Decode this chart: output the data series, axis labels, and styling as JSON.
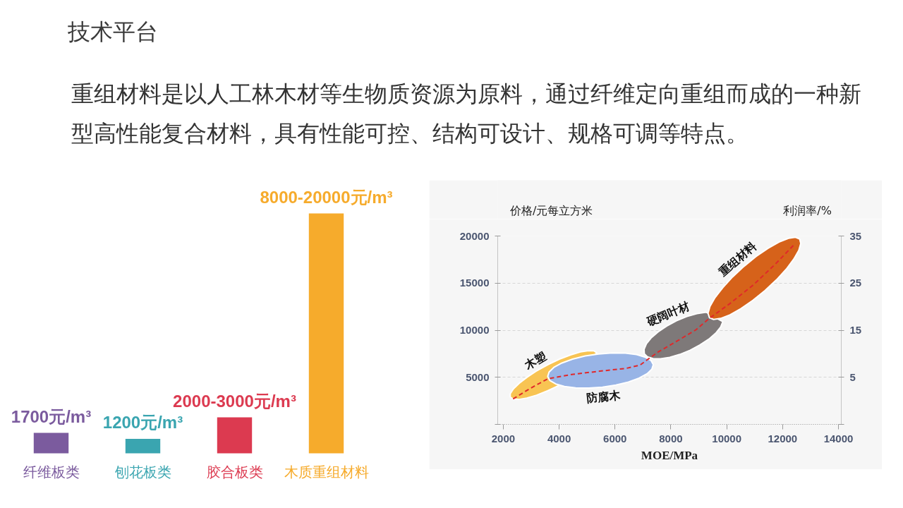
{
  "chart_data": [
    {
      "type": "bar",
      "title": "技术平台",
      "subtitle": "重组材料是以人工林木材等生物质资源为原料，通过纤维定向重组而成的一种新型高性能复合材料，具有性能可控、结构可设计、规格可调等特点。",
      "categories": [
        "纤维板类",
        "刨花板类",
        "胶合板类",
        "木质重组材料"
      ],
      "values": [
        1700,
        1200,
        3000,
        20000
      ],
      "colors": [
        "#7b5b9e",
        "#3aa5b0",
        "#dc3a50",
        "#f6ab2c"
      ],
      "value_labels": [
        "1700元/m³",
        "1200元/m³",
        "2000-3000元/m³",
        "8000-20000元/m³"
      ],
      "tick_labels": "x"
    },
    {
      "type": "line",
      "xlabel": "MOE/MPa",
      "ylabel": "价格/元每立方米",
      "y2label": "利润率/%",
      "xlim": [
        1800,
        14100
      ],
      "xticks": [
        2000,
        4000,
        6000,
        8000,
        10000,
        12000,
        14000
      ],
      "ylim": [
        0,
        20000
      ],
      "yticks": [
        {
          "value": 0,
          "label": null
        },
        5000,
        10000,
        15000,
        20000
      ],
      "y2lim": [
        -5,
        35
      ],
      "y2ticks": [
        {
          "value": -5,
          "label": null
        },
        5,
        15,
        25,
        35
      ],
      "grid": "y",
      "series": [
        {
          "type": "area",
          "name": "木塑",
          "color": "#f8c453",
          "x": [
            5350,
            5250,
            5050,
            4760,
            4410,
            4010,
            3610,
            3210,
            2860,
            2570,
            2360,
            2250,
            2250,
            2350,
            2550,
            2840,
            3190,
            3580,
            3990
          ],
          "values": [
            7590,
            7800,
            7830,
            7690,
            7380,
            6930,
            6360,
            5710,
            5030,
            4370,
            3770,
            3260,
            2900,
            2690,
            2650,
            2800,
            3100,
            3560,
            4130
          ]
        },
        {
          "type": "area",
          "name": "防腐木",
          "color": "#98b4e6",
          "x": [
            7370,
            7290,
            7080,
            6770,
            6370,
            5900,
            5410,
            4930,
            4480,
            4100,
            3810,
            3640,
            3590,
            3670,
            3880,
            4190,
            4590,
            5060,
            5550,
            6030,
            6480,
            6860,
            7150,
            7320
          ],
          "values": [
            6340,
            6780,
            7140,
            7410,
            7560,
            7580,
            7480,
            7260,
            6930,
            6520,
            6050,
            5560,
            5090,
            4650,
            4290,
            4020,
            3870,
            3850,
            3950,
            4170,
            4500,
            4910,
            5380,
            5870
          ]
        },
        {
          "type": "area",
          "name": "硬阔叶材",
          "color": "#7e7979",
          "x": [
            9260,
            8930,
            8570,
            8200,
            7850,
            7540,
            7290,
            7120,
            7040,
            7050,
            7160,
            7360,
            7630,
            7960,
            8320,
            8690,
            9040,
            9360,
            9610,
            9780,
            9860
          ],
          "values": [
            11910,
            11750,
            11450,
            11000,
            10440,
            9820,
            9170,
            8540,
            7970,
            7500,
            7170,
            6980,
            6970,
            7120,
            7430,
            7880,
            8430,
            9050,
            9700,
            10330,
            10900
          ]
        },
        {
          "type": "area",
          "name": "重组材料",
          "color": "#d6621a",
          "x": [
            12610,
            12460,
            12210,
            11870,
            11480,
            11050,
            10620,
            10210,
            9860,
            9580,
            9400,
            9330,
            9380,
            9530,
            9780,
            10120,
            10510,
            10940,
            11370,
            11780,
            12130,
            12400,
            12580,
            12650
          ],
          "values": [
            19680,
            19870,
            19760,
            19360,
            18700,
            17830,
            16790,
            15660,
            14530,
            13460,
            12530,
            11800,
            11330,
            11140,
            11250,
            11640,
            12300,
            13180,
            14220,
            15350,
            16480,
            17550,
            18480,
            19210
          ]
        },
        {
          "type": "line",
          "color": "#e0282a",
          "line_style": "dashed",
          "x": [
            2350,
            2950,
            3600,
            4450,
            5450,
            6400,
            6900,
            7150,
            7550,
            8250,
            8900,
            9350,
            10100,
            10950,
            11750,
            12450
          ],
          "values": [
            2700,
            3800,
            4850,
            5300,
            5650,
            5950,
            6300,
            6850,
            7700,
            8900,
            10050,
            11200,
            12800,
            14800,
            17050,
            19200
          ]
        }
      ]
    }
  ]
}
